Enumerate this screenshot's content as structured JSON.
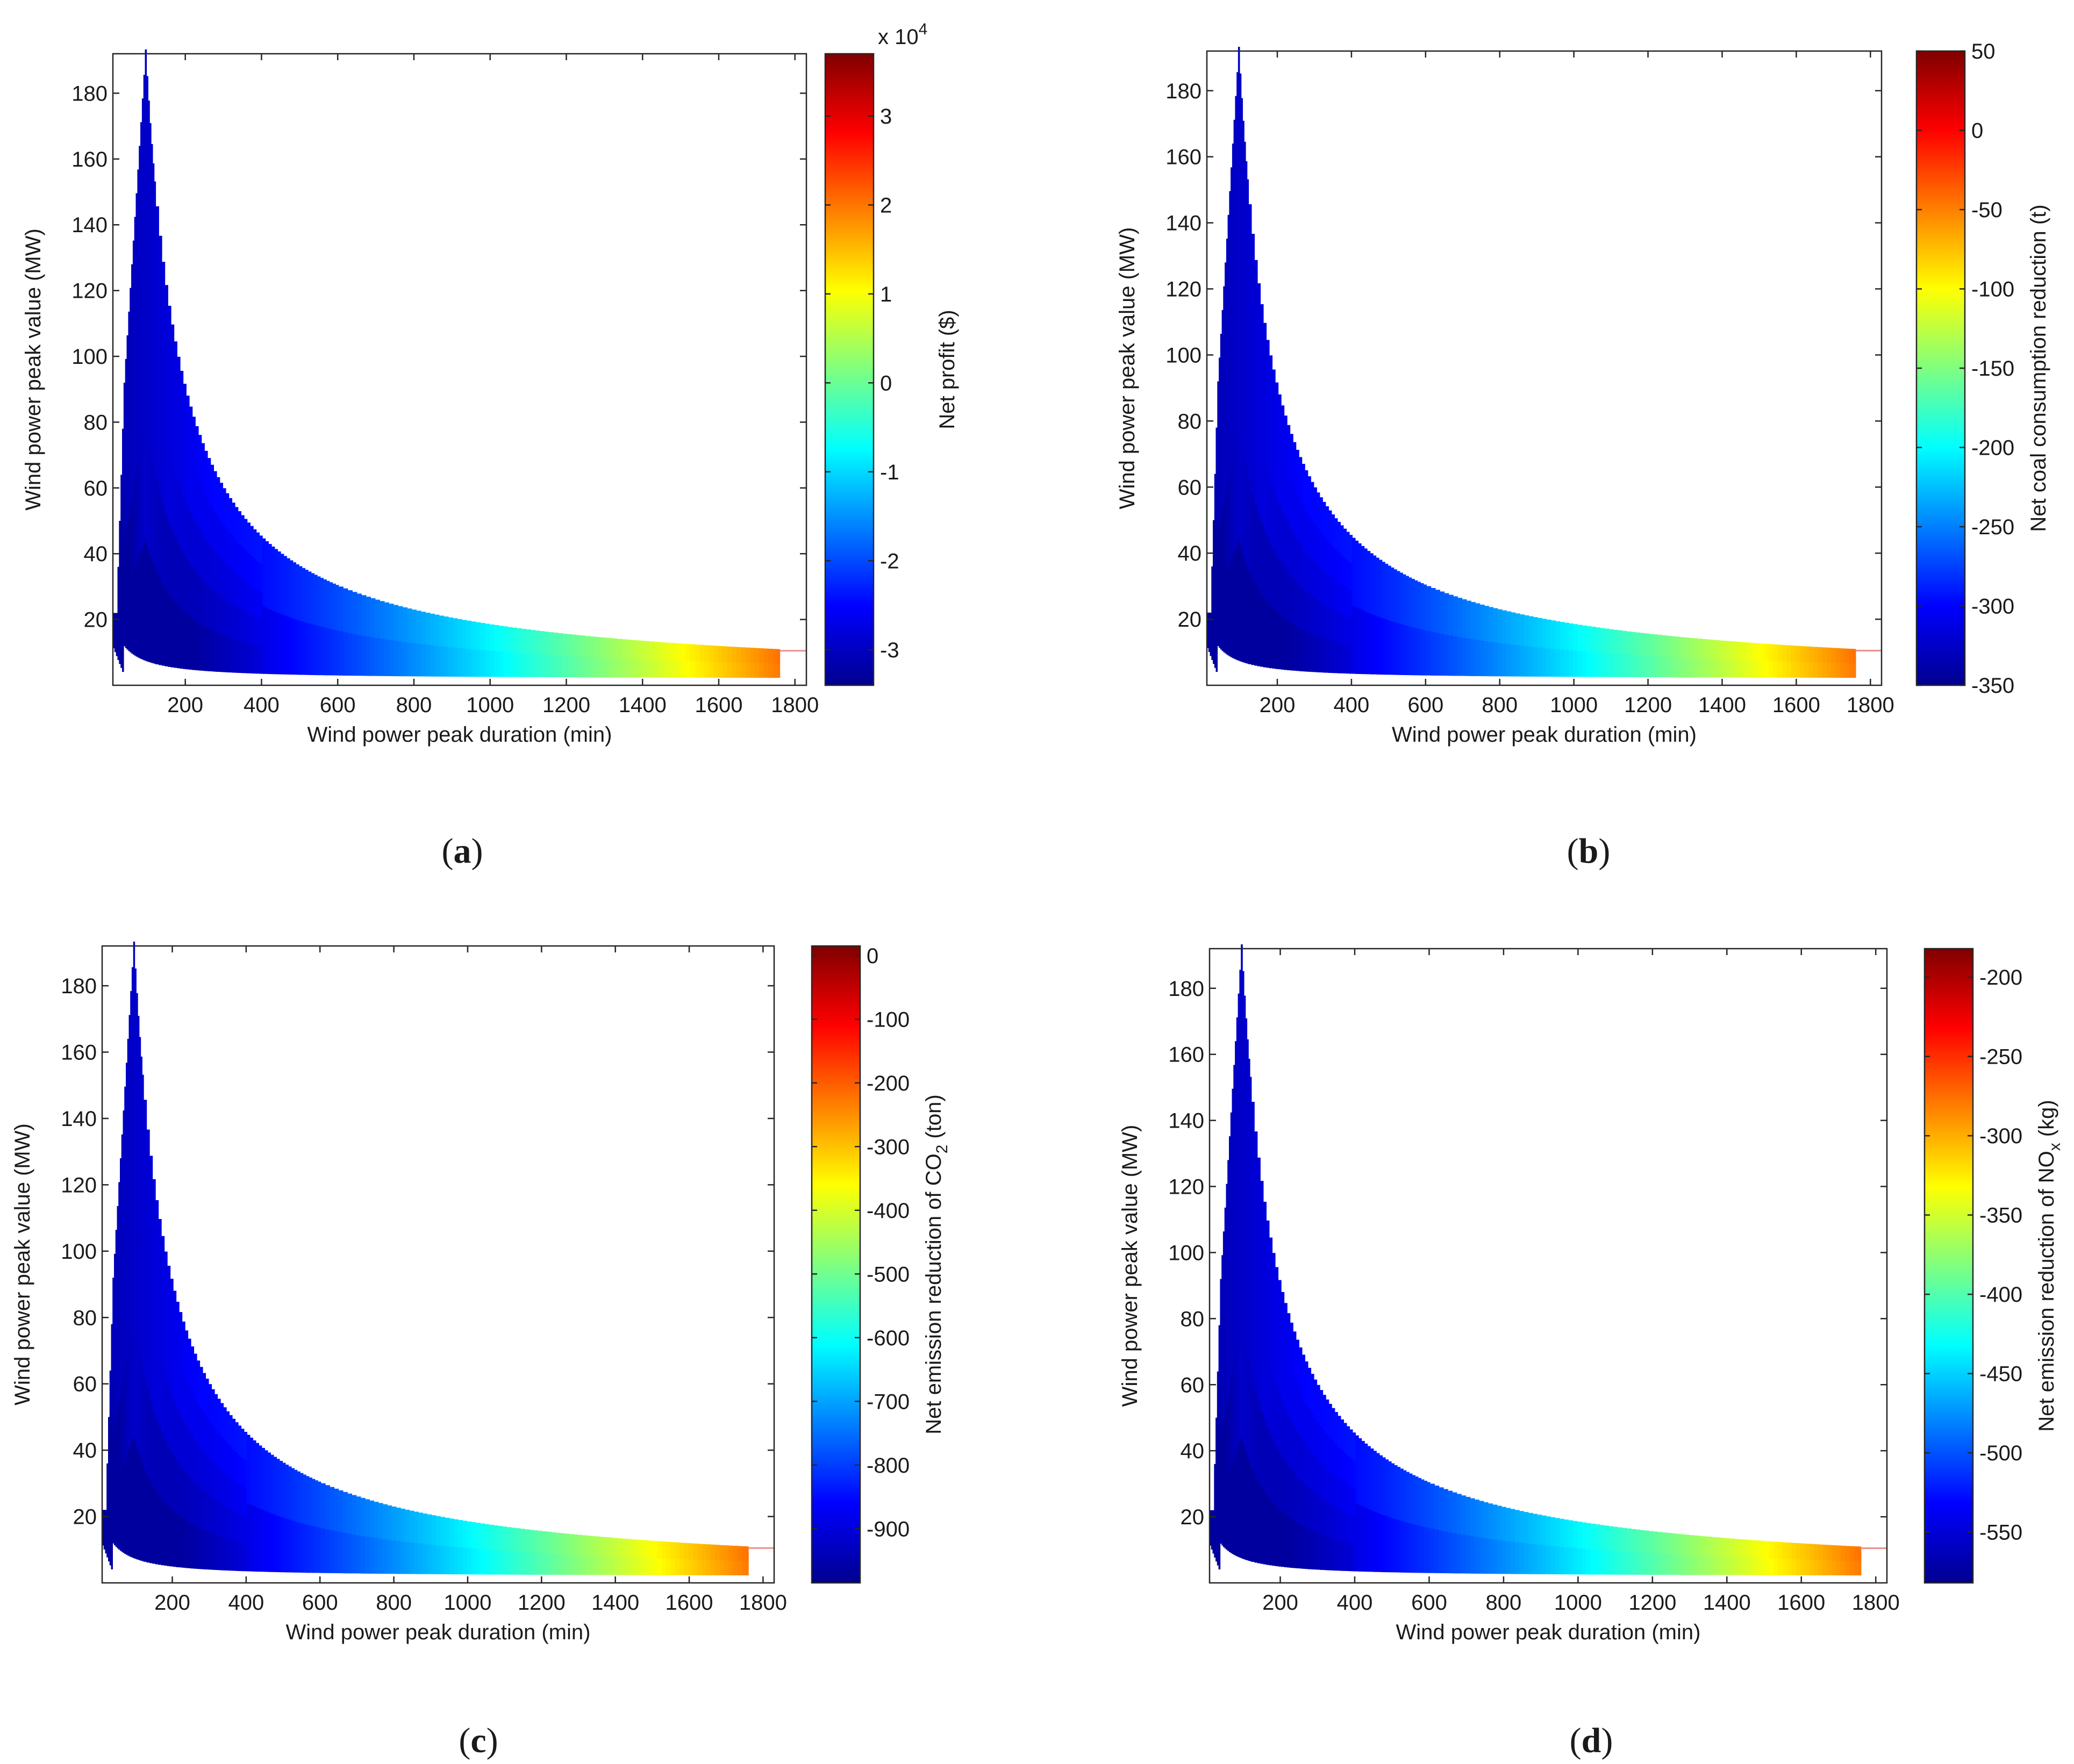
{
  "chart_data": [
    {
      "type": "heatmap",
      "panel_label": "(a)",
      "panel_letter": "a",
      "xlabel": "Wind power peak duration (min)",
      "ylabel": "Wind power peak value (MW)",
      "xlim": [
        10,
        1830
      ],
      "ylim": [
        0,
        192
      ],
      "xticks": [
        200,
        400,
        600,
        800,
        1000,
        1200,
        1400,
        1600,
        1800
      ],
      "yticks": [
        20,
        40,
        60,
        80,
        100,
        120,
        140,
        160,
        180
      ],
      "colorbar": {
        "label": "Net profit ($)",
        "label_sub": "",
        "label_suffix": "",
        "exponent_base": "x 10",
        "exponent_power": "4",
        "range": [
          -3.4,
          3.7
        ],
        "ticks": [
          -3,
          -2,
          -1,
          0,
          1,
          2,
          3
        ],
        "tick_labels": [
          "-3",
          "-2",
          "-1",
          "0",
          "1",
          "2",
          "3"
        ]
      }
    },
    {
      "type": "heatmap",
      "panel_label": "(b)",
      "panel_letter": "b",
      "xlabel": "Wind power peak duration (min)",
      "ylabel": "Wind power peak value (MW)",
      "xlim": [
        10,
        1830
      ],
      "ylim": [
        0,
        192
      ],
      "xticks": [
        200,
        400,
        600,
        800,
        1000,
        1200,
        1400,
        1600,
        1800
      ],
      "yticks": [
        20,
        40,
        60,
        80,
        100,
        120,
        140,
        160,
        180
      ],
      "colorbar": {
        "label": "Net coal consumption reduction (t)",
        "label_sub": "",
        "label_suffix": "",
        "range": [
          -350,
          50
        ],
        "ticks": [
          -350,
          -300,
          -250,
          -200,
          -150,
          -100,
          -50,
          0,
          50
        ],
        "tick_labels": [
          "-350",
          "-300",
          "-250",
          "-200",
          "-150",
          "-100",
          "-50",
          "0",
          "50"
        ]
      }
    },
    {
      "type": "heatmap",
      "panel_label": "(c)",
      "panel_letter": "c",
      "xlabel": "Wind power peak duration (min)",
      "ylabel": "Wind power peak value (MW)",
      "xlim": [
        10,
        1830
      ],
      "ylim": [
        0,
        192
      ],
      "xticks": [
        200,
        400,
        600,
        800,
        1000,
        1200,
        1400,
        1600,
        1800
      ],
      "yticks": [
        20,
        40,
        60,
        80,
        100,
        120,
        140,
        160,
        180
      ],
      "colorbar": {
        "label": "Net emission reduction of CO",
        "label_sub": "2",
        "label_suffix": " (ton)",
        "range": [
          -985,
          15
        ],
        "ticks": [
          -900,
          -800,
          -700,
          -600,
          -500,
          -400,
          -300,
          -200,
          -100,
          0
        ],
        "tick_labels": [
          "-900",
          "-800",
          "-700",
          "-600",
          "-500",
          "-400",
          "-300",
          "-200",
          "-100",
          "0"
        ]
      }
    },
    {
      "type": "heatmap",
      "panel_label": "(d)",
      "panel_letter": "d",
      "xlabel": "Wind power peak duration (min)",
      "ylabel": "Wind power peak value (MW)",
      "xlim": [
        10,
        1830
      ],
      "ylim": [
        0,
        192
      ],
      "xticks": [
        200,
        400,
        600,
        800,
        1000,
        1200,
        1400,
        1600,
        1800
      ],
      "yticks": [
        20,
        40,
        60,
        80,
        100,
        120,
        140,
        160,
        180
      ],
      "colorbar": {
        "label": "Net emission reduction of NO",
        "label_sub": "x",
        "label_suffix": " (kg)",
        "range": [
          -582,
          -182
        ],
        "ticks": [
          -550,
          -500,
          -450,
          -400,
          -350,
          -300,
          -250,
          -200
        ],
        "tick_labels": [
          "-550",
          "-500",
          "-450",
          "-400",
          "-350",
          "-300",
          "-250",
          "-200"
        ]
      }
    }
  ]
}
